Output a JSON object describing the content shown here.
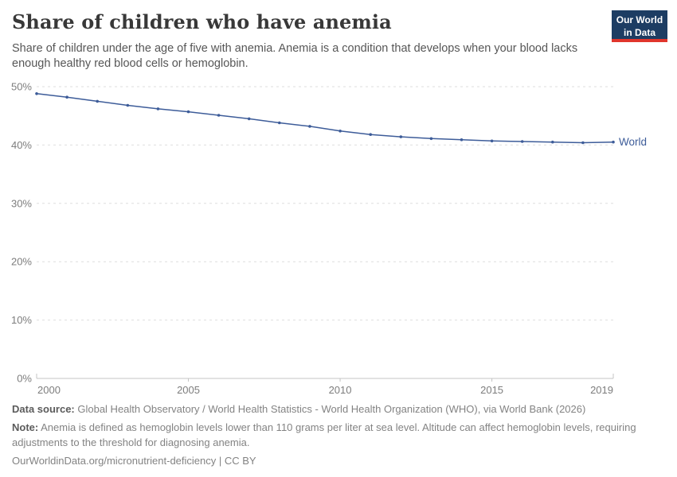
{
  "header": {
    "title": "Share of children who have anemia",
    "subtitle": "Share of children under the age of five with anemia. Anemia is a condition that develops when your blood lacks enough healthy red blood cells or hemoglobin."
  },
  "logo": {
    "line1": "Our World",
    "line2": "in Data",
    "bg_color": "#1d3d63",
    "accent_color": "#e1352c"
  },
  "chart_data": {
    "type": "line",
    "x": [
      2000,
      2001,
      2002,
      2003,
      2004,
      2005,
      2006,
      2007,
      2008,
      2009,
      2010,
      2011,
      2012,
      2013,
      2014,
      2015,
      2016,
      2017,
      2018,
      2019
    ],
    "series": [
      {
        "name": "World",
        "color": "#3d5c99",
        "values": [
          48.8,
          48.2,
          47.5,
          46.8,
          46.2,
          45.7,
          45.1,
          44.5,
          43.8,
          43.2,
          42.4,
          41.8,
          41.4,
          41.1,
          40.9,
          40.7,
          40.6,
          40.5,
          40.4,
          40.5
        ]
      }
    ],
    "title": "Share of children who have anemia",
    "xlabel": "",
    "ylabel": "",
    "ylim": [
      0,
      50
    ],
    "yticks": [
      0,
      10,
      20,
      30,
      40,
      50
    ],
    "ytick_suffix": "%",
    "xticks": [
      2000,
      2005,
      2010,
      2015,
      2019
    ],
    "grid": "horizontal-dashed",
    "legend": "line-end-label",
    "colors": {
      "gridline": "#dedede",
      "axis": "#c4c4c4",
      "tick_text": "#7d7d7d"
    }
  },
  "footer": {
    "datasource_label": "Data source:",
    "datasource_text": " Global Health Observatory / World Health Statistics - World Health Organization (WHO), via World Bank (2026)",
    "note_label": "Note:",
    "note_text": " Anemia is defined as hemoglobin levels lower than 110 grams per liter at sea level. Altitude can affect hemoglobin levels, requiring adjustments to the threshold for diagnosing anemia.",
    "link_line": "OurWorldinData.org/micronutrient-deficiency | CC BY"
  }
}
